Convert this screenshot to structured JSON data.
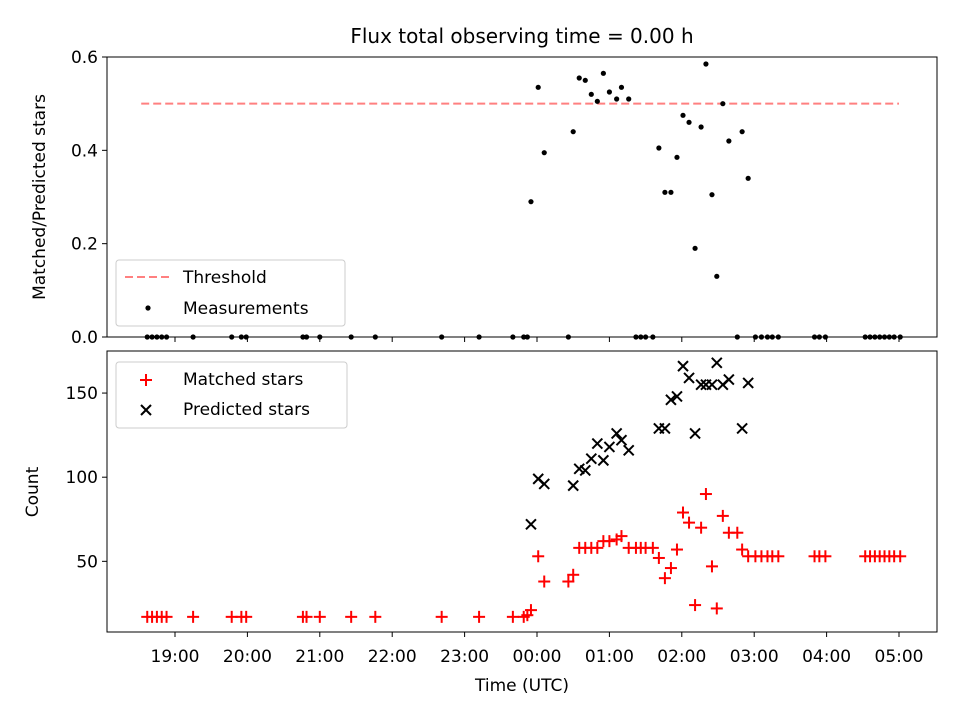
{
  "chart_data": [
    {
      "type": "scatter",
      "title": "Flux total observing time = 0.00 h",
      "xlabel": "",
      "ylabel": "Matched/Predicted stars",
      "xlim": [
        -360,
        300
      ],
      "ylim": [
        0,
        0.6
      ],
      "yticks": [
        0.0,
        0.2,
        0.4,
        0.6
      ],
      "ytick_labels": [
        "0.0",
        "0.2",
        "0.4",
        "0.6"
      ],
      "xticks": [
        -300,
        -240,
        -180,
        -120,
        -60,
        0,
        60,
        120,
        180,
        240,
        300
      ],
      "xtick_labels_shown": false,
      "legend": {
        "placement": "lower-left",
        "entries": [
          "Threshold",
          "Measurements"
        ]
      },
      "threshold": {
        "name": "Threshold",
        "x": [
          -328,
          300
        ],
        "y": 0.5,
        "color": "#ff8080",
        "style": "dashed"
      },
      "series": [
        {
          "name": "Measurements",
          "color": "#000000",
          "points": [
            [
              -323,
              0
            ],
            [
              -319,
              0
            ],
            [
              -315,
              0
            ],
            [
              -311,
              0
            ],
            [
              -307,
              0
            ],
            [
              -285,
              0
            ],
            [
              -253,
              0
            ],
            [
              -245,
              0
            ],
            [
              -241,
              0
            ],
            [
              -194,
              0
            ],
            [
              -191,
              0
            ],
            [
              -180,
              0
            ],
            [
              -154,
              0
            ],
            [
              -134,
              0
            ],
            [
              -79,
              0
            ],
            [
              -48,
              0
            ],
            [
              -20,
              0
            ],
            [
              -11,
              0
            ],
            [
              -8,
              0
            ],
            [
              -5,
              0.29
            ],
            [
              1,
              0.535
            ],
            [
              6,
              0.395
            ],
            [
              26,
              0
            ],
            [
              30,
              0.44
            ],
            [
              35,
              0.555
            ],
            [
              40,
              0.55
            ],
            [
              45,
              0.52
            ],
            [
              50,
              0.505
            ],
            [
              55,
              0.565
            ],
            [
              60,
              0.525
            ],
            [
              66,
              0.51
            ],
            [
              70,
              0.535
            ],
            [
              76,
              0.51
            ],
            [
              82,
              0
            ],
            [
              86,
              0
            ],
            [
              90,
              0
            ],
            [
              96,
              0
            ],
            [
              101,
              0.405
            ],
            [
              106,
              0.31
            ],
            [
              111,
              0.31
            ],
            [
              116,
              0.385
            ],
            [
              121,
              0.475
            ],
            [
              126,
              0.46
            ],
            [
              131,
              0.19
            ],
            [
              136,
              0.45
            ],
            [
              140,
              0.585
            ],
            [
              145,
              0.305
            ],
            [
              149,
              0.13
            ],
            [
              154,
              0.5
            ],
            [
              159,
              0.42
            ],
            [
              166,
              0
            ],
            [
              170,
              0.44
            ],
            [
              175,
              0.34
            ],
            [
              181,
              0
            ],
            [
              186,
              0
            ],
            [
              191,
              0
            ],
            [
              195,
              0
            ],
            [
              200,
              0
            ],
            [
              230,
              0
            ],
            [
              234,
              0
            ],
            [
              239,
              0
            ],
            [
              272,
              0
            ],
            [
              276,
              0
            ],
            [
              280,
              0
            ],
            [
              284,
              0
            ],
            [
              288,
              0
            ],
            [
              292,
              0
            ],
            [
              296,
              0
            ],
            [
              301,
              0
            ]
          ]
        }
      ]
    },
    {
      "type": "scatter",
      "title": "",
      "xlabel": "Time (UTC)",
      "ylabel": "Count",
      "xlim": [
        -360,
        300
      ],
      "ylim": [
        8,
        175
      ],
      "yticks": [
        50,
        100,
        150
      ],
      "ytick_labels": [
        "50",
        "100",
        "150"
      ],
      "xticks": [
        -300,
        -240,
        -180,
        -120,
        -60,
        0,
        60,
        120,
        180,
        240,
        300
      ],
      "xtick_labels": [
        "19:00",
        "20:00",
        "21:00",
        "22:00",
        "23:00",
        "00:00",
        "01:00",
        "02:00",
        "03:00",
        "04:00",
        "05:00"
      ],
      "legend": {
        "placement": "upper-left",
        "entries": [
          "Matched stars",
          "Predicted stars"
        ]
      },
      "series": [
        {
          "name": "Matched stars",
          "color": "#ff0000",
          "marker": "plus",
          "points": [
            [
              -323,
              17
            ],
            [
              -319,
              17
            ],
            [
              -315,
              17
            ],
            [
              -311,
              17
            ],
            [
              -307,
              17
            ],
            [
              -285,
              17
            ],
            [
              -253,
              17
            ],
            [
              -245,
              17
            ],
            [
              -241,
              17
            ],
            [
              -194,
              17
            ],
            [
              -191,
              17
            ],
            [
              -180,
              17
            ],
            [
              -154,
              17
            ],
            [
              -134,
              17
            ],
            [
              -79,
              17
            ],
            [
              -48,
              17
            ],
            [
              -20,
              17
            ],
            [
              -11,
              17
            ],
            [
              -8,
              18
            ],
            [
              -5,
              21
            ],
            [
              1,
              53
            ],
            [
              6,
              38
            ],
            [
              26,
              38
            ],
            [
              30,
              42
            ],
            [
              35,
              58
            ],
            [
              40,
              58
            ],
            [
              45,
              58
            ],
            [
              50,
              58
            ],
            [
              55,
              62
            ],
            [
              60,
              62
            ],
            [
              66,
              63
            ],
            [
              70,
              65
            ],
            [
              76,
              58
            ],
            [
              82,
              58
            ],
            [
              86,
              58
            ],
            [
              90,
              58
            ],
            [
              96,
              58
            ],
            [
              101,
              52
            ],
            [
              106,
              40
            ],
            [
              111,
              46
            ],
            [
              116,
              57
            ],
            [
              121,
              79
            ],
            [
              126,
              73
            ],
            [
              131,
              24
            ],
            [
              136,
              70
            ],
            [
              140,
              90
            ],
            [
              145,
              47
            ],
            [
              149,
              22
            ],
            [
              154,
              77
            ],
            [
              159,
              67
            ],
            [
              166,
              67
            ],
            [
              170,
              57
            ],
            [
              175,
              53
            ],
            [
              181,
              53
            ],
            [
              186,
              53
            ],
            [
              191,
              53
            ],
            [
              195,
              53
            ],
            [
              200,
              53
            ],
            [
              230,
              53
            ],
            [
              234,
              53
            ],
            [
              239,
              53
            ],
            [
              272,
              53
            ],
            [
              276,
              53
            ],
            [
              280,
              53
            ],
            [
              284,
              53
            ],
            [
              288,
              53
            ],
            [
              292,
              53
            ],
            [
              296,
              53
            ],
            [
              301,
              53
            ]
          ]
        },
        {
          "name": "Predicted stars",
          "color": "#000000",
          "marker": "x",
          "points": [
            [
              -5,
              72
            ],
            [
              1,
              99
            ],
            [
              6,
              96
            ],
            [
              30,
              95
            ],
            [
              35,
              105
            ],
            [
              40,
              104
            ],
            [
              45,
              111
            ],
            [
              50,
              120
            ],
            [
              55,
              110
            ],
            [
              60,
              118
            ],
            [
              66,
              126
            ],
            [
              70,
              122
            ],
            [
              76,
              116
            ],
            [
              101,
              129
            ],
            [
              106,
              129
            ],
            [
              111,
              146
            ],
            [
              116,
              148
            ],
            [
              121,
              166
            ],
            [
              126,
              159
            ],
            [
              131,
              126
            ],
            [
              136,
              155
            ],
            [
              140,
              155
            ],
            [
              145,
              155
            ],
            [
              149,
              168
            ],
            [
              154,
              155
            ],
            [
              159,
              158
            ],
            [
              170,
              129
            ],
            [
              175,
              156
            ]
          ]
        }
      ]
    }
  ]
}
